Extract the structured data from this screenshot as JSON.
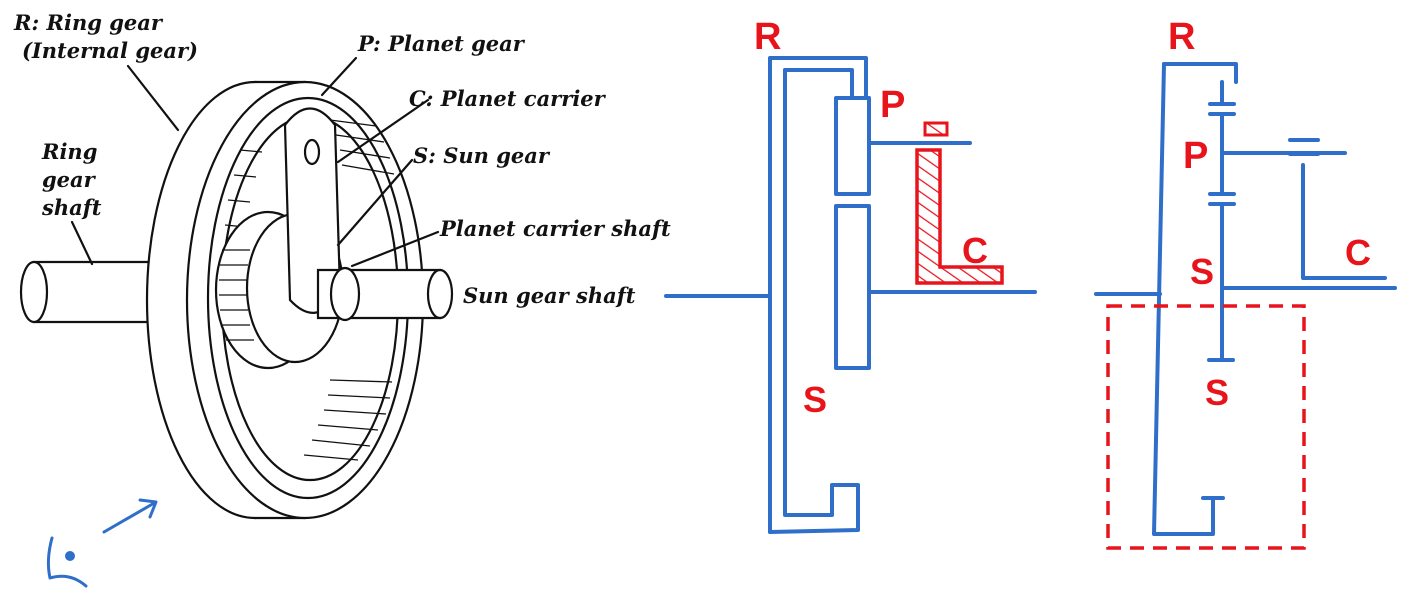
{
  "illustration": {
    "labels": {
      "ring_gear_line1": "R: Ring gear",
      "ring_gear_line2": "(Internal gear)",
      "planet_gear": "P:  Planet gear",
      "planet_carrier": "C:  Planet carrier",
      "sun_gear": "S:  Sun gear",
      "planet_carrier_shaft": "Planet carrier shaft",
      "sun_gear_shaft": "Sun gear shaft",
      "ring_gear_shaft_line1": "Ring",
      "ring_gear_shaft_line2": "gear",
      "ring_gear_shaft_line3": "shaft"
    }
  },
  "schematic_1": {
    "labels": {
      "ring": "R",
      "planet": "P",
      "carrier": "C",
      "sun": "S"
    }
  },
  "schematic_2": {
    "labels": {
      "ring": "R",
      "planet": "P",
      "carrier": "C",
      "sun_upper": "S",
      "sun_lower": "S"
    }
  },
  "colors": {
    "ink": "#111111",
    "sketch_blue": "#2f6fc9",
    "highlight_red": "#e8141c"
  },
  "icons": [
    "eye-viewpoint-icon",
    "view-direction-arrow-icon"
  ]
}
